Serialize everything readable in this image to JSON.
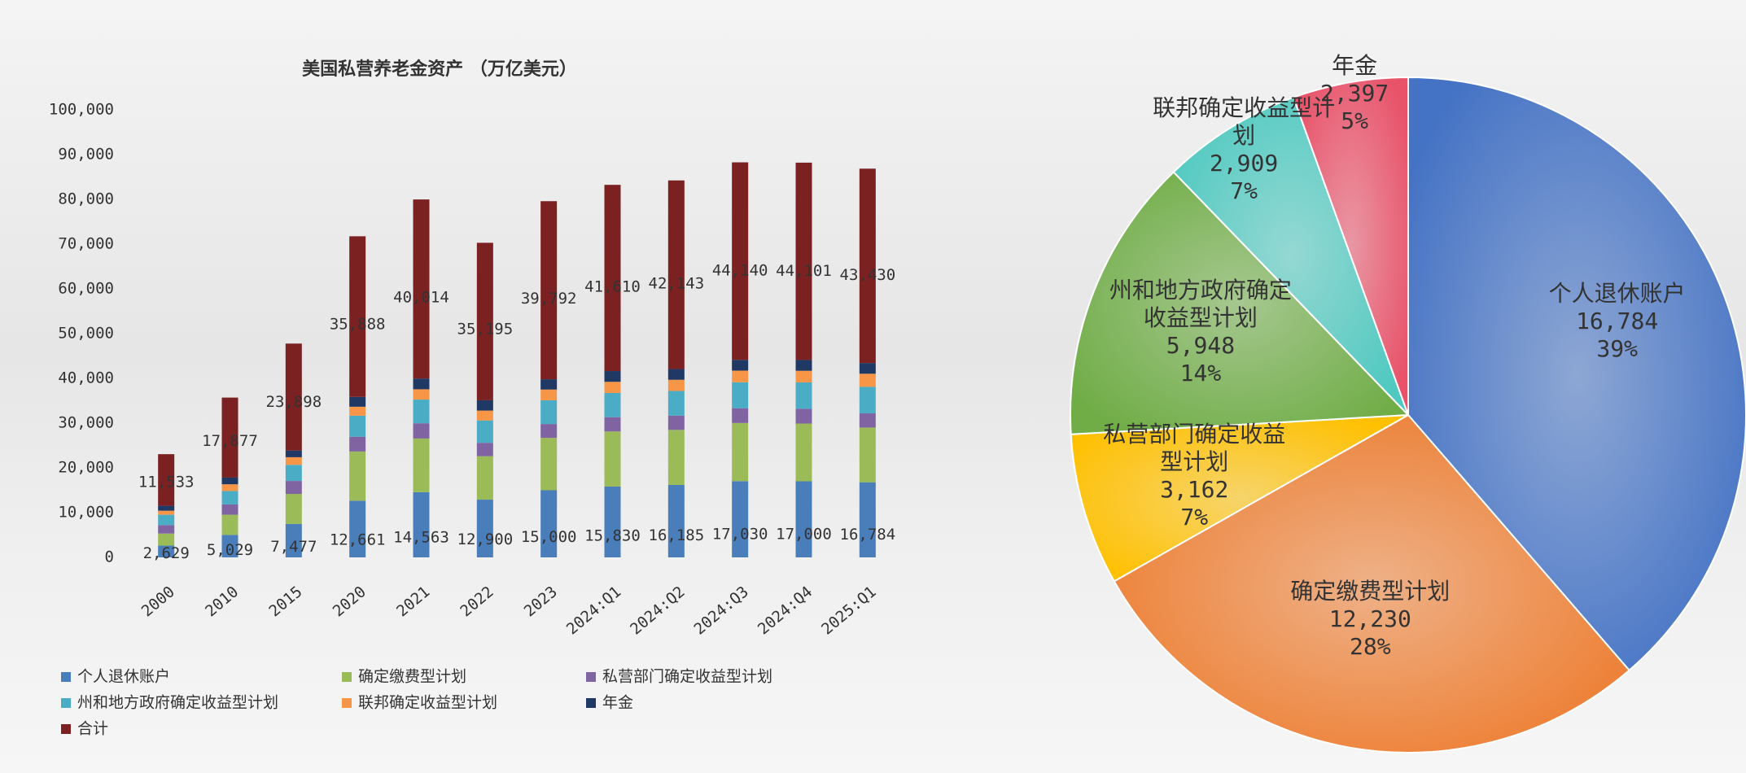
{
  "chart_data": [
    {
      "type": "bar",
      "stacked": true,
      "title": "美国私营养老金资产 （万亿美元）",
      "categories": [
        "2000",
        "2010",
        "2015",
        "2020",
        "2021",
        "2022",
        "2023",
        "2024:Q1",
        "2024:Q2",
        "2024:Q3",
        "2024:Q4",
        "2025:Q1"
      ],
      "series": [
        {
          "name": "个人退休账户",
          "color": "#4a7ebb",
          "values": [
            2629,
            5029,
            7477,
            12661,
            14563,
            12900,
            15000,
            15830,
            16185,
            17030,
            17000,
            16784
          ],
          "value_labels": [
            "2,629",
            "5,029",
            "7,477",
            "12,661",
            "14,563",
            "12,900",
            "15,000",
            "15,830",
            "16,185",
            "17,030",
            "17,000",
            "16,784"
          ]
        },
        {
          "name": "确定缴费型计划",
          "color": "#9bbb59",
          "values": [
            2700,
            4500,
            6700,
            11000,
            12000,
            9700,
            11700,
            12300,
            12300,
            13000,
            12900,
            12230
          ]
        },
        {
          "name": "私营部门确定收益型计划",
          "color": "#8064a2",
          "values": [
            1900,
            2300,
            2900,
            3300,
            3400,
            3000,
            3100,
            3200,
            3200,
            3300,
            3300,
            3162
          ]
        },
        {
          "name": "州和地方政府确定收益型计划",
          "color": "#4bacc6",
          "values": [
            2300,
            3000,
            3600,
            4700,
            5300,
            5000,
            5300,
            5400,
            5500,
            5800,
            5900,
            5948
          ]
        },
        {
          "name": "联邦确定收益型计划",
          "color": "#f79646",
          "values": [
            900,
            1500,
            1700,
            2000,
            2300,
            2200,
            2400,
            2500,
            2500,
            2600,
            2600,
            2909
          ]
        },
        {
          "name": "年金",
          "color": "#1f3864",
          "values": [
            1100,
            1500,
            1500,
            2200,
            2400,
            2300,
            2300,
            2400,
            2400,
            2400,
            2400,
            2397
          ]
        },
        {
          "name": "合计",
          "color": "#7b2121",
          "values": [
            11533,
            17877,
            23898,
            35888,
            40014,
            35195,
            39792,
            41610,
            42143,
            44140,
            44101,
            43430
          ],
          "value_labels": [
            "11,533",
            "17,877",
            "23,898",
            "35,888",
            "40,014",
            "35,195",
            "39,792",
            "41,610",
            "42,143",
            "44,140",
            "44,101",
            "43,430"
          ]
        }
      ],
      "ylim": [
        0,
        100000
      ],
      "yticks": [
        0,
        {
          "value": 10000,
          "label": "10,000"
        },
        {
          "value": 20000,
          "label": "20,000"
        },
        {
          "value": 30000,
          "label": "30,000"
        },
        {
          "value": 40000,
          "label": "40,000"
        },
        {
          "value": 50000,
          "label": "50,000"
        },
        {
          "value": 60000,
          "label": "60,000"
        },
        {
          "value": 70000,
          "label": "70,000"
        },
        {
          "value": 80000,
          "label": "80,000"
        },
        {
          "value": 90000,
          "label": "90,000"
        },
        {
          "value": 100000,
          "label": "100,000"
        }
      ],
      "grid": false,
      "legend": "bottom"
    },
    {
      "type": "pie",
      "categories": [
        "个人退休账户",
        "确定缴费型计划",
        "私营部门确定收益型计划",
        "州和地方政府确定收益型计划",
        "联邦确定收益型计划",
        "年金"
      ],
      "values": [
        16784,
        12230,
        3162,
        5948,
        2909,
        2397
      ],
      "value_labels": [
        "16,784",
        "12,230",
        "3,162",
        "5,948",
        "2,909",
        "2,397"
      ],
      "percents": [
        39,
        28,
        7,
        14,
        7,
        5
      ],
      "percent_labels": [
        "39%",
        "28%",
        "7%",
        "14%",
        "7%",
        "5%"
      ],
      "colors": [
        "#4472c4",
        "#ed7d31",
        "#ffc000",
        "#70ad47",
        "#4fc9c0",
        "#e8536a"
      ]
    }
  ]
}
